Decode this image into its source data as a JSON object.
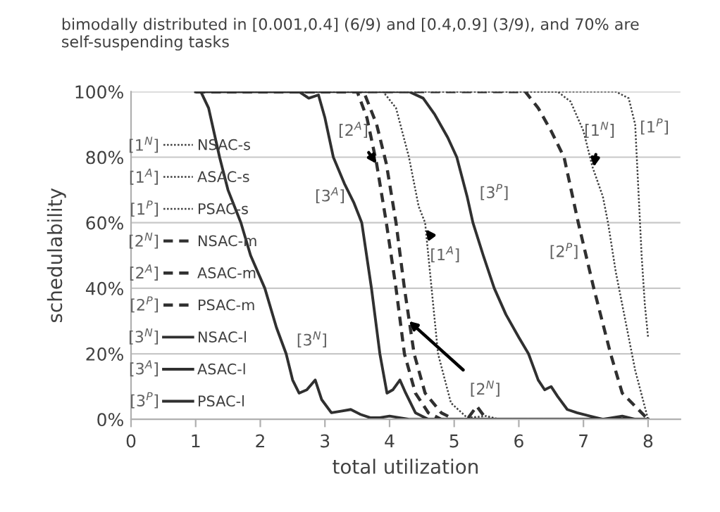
{
  "chart_data": {
    "type": "line",
    "title": "bimodally distributed in [0.001,0.4] (6/9) and [0.4,0.9] (3/9), and 70% are self-suspending tasks",
    "xlabel": "total utilization",
    "ylabel": "schedulability",
    "xlim": [
      0,
      8.5
    ],
    "xticks": [
      0,
      1,
      2,
      3,
      4,
      5,
      6,
      7,
      8
    ],
    "ylim": [
      0,
      100
    ],
    "yticks": [
      {
        "value": 0,
        "label": "0%"
      },
      {
        "value": 20,
        "label": "20%"
      },
      {
        "value": 40,
        "label": "40%"
      },
      {
        "value": 60,
        "label": "60%"
      },
      {
        "value": 80,
        "label": "80%"
      },
      {
        "value": 100,
        "label": "100%"
      }
    ],
    "grid": "y",
    "legend": "left",
    "series": [
      {
        "name": "NSAC-s",
        "color": "#404040",
        "line_style": "dotted",
        "x": [
          1,
          6.6,
          6.8,
          7.0,
          7.14,
          7.3,
          7.38,
          7.5,
          7.65,
          7.8,
          8
        ],
        "values": [
          100,
          100,
          97,
          88,
          77,
          68,
          60,
          45,
          30,
          15,
          0
        ]
      },
      {
        "name": "ASAC-s",
        "color": "#404040",
        "line_style": "dotted",
        "x": [
          1,
          3.9,
          4.1,
          4.3,
          4.45,
          4.55,
          4.65,
          4.75,
          4.95,
          5.2,
          5.5,
          5.7,
          8
        ],
        "values": [
          100,
          100,
          95,
          80,
          65,
          60,
          40,
          20,
          5,
          0.5,
          1,
          0,
          0
        ]
      },
      {
        "name": "PSAC-s",
        "color": "#404040",
        "line_style": "dotted",
        "x": [
          1,
          7.5,
          7.7,
          7.8,
          7.85,
          7.9,
          7.95,
          8
        ],
        "values": [
          100,
          100,
          98,
          90,
          70,
          50,
          35,
          25
        ]
      },
      {
        "name": "NSAC-m",
        "color": "#303030",
        "line_style": "dashed",
        "x": [
          1,
          3.6,
          3.8,
          3.95,
          4.1,
          4.23,
          4.38,
          4.55,
          4.8,
          5.0,
          5.2,
          5.35,
          5.5,
          8
        ],
        "values": [
          100,
          100,
          90,
          78,
          60,
          40,
          20,
          8,
          2,
          0,
          0,
          4,
          0,
          0
        ]
      },
      {
        "name": "ASAC-m",
        "color": "#303030",
        "line_style": "dashed",
        "x": [
          1,
          3.5,
          3.65,
          3.8,
          3.95,
          4.1,
          4.23,
          4.4,
          4.6,
          4.8,
          8
        ],
        "values": [
          100,
          100,
          92,
          78,
          60,
          40,
          20,
          8,
          2,
          0,
          0
        ]
      },
      {
        "name": "PSAC-m",
        "color": "#303030",
        "line_style": "dashed",
        "x": [
          1,
          6.1,
          6.3,
          6.5,
          6.7,
          6.92,
          7.16,
          7.42,
          7.6,
          7.8,
          8
        ],
        "values": [
          100,
          100,
          95,
          88,
          80,
          60,
          40,
          20,
          8,
          4,
          0
        ]
      },
      {
        "name": "NSAC-l",
        "color": "#303030",
        "line_style": "solid",
        "x": [
          1,
          1.08,
          1.2,
          1.37,
          1.5,
          1.7,
          1.85,
          2.07,
          2.25,
          2.4,
          2.5,
          2.6,
          2.72,
          2.85,
          2.95,
          3.1,
          3.25,
          3.4,
          3.55,
          3.7,
          3.85,
          4.0,
          4.15,
          4.3,
          8
        ],
        "values": [
          100,
          100,
          95,
          80,
          70,
          60,
          50,
          40,
          28,
          20,
          12,
          8,
          9,
          12,
          6,
          2,
          2.5,
          3,
          1.5,
          0.5,
          0.5,
          1,
          0.5,
          0,
          0
        ]
      },
      {
        "name": "ASAC-l",
        "color": "#303030",
        "line_style": "solid",
        "x": [
          1,
          2.6,
          2.75,
          2.9,
          3.0,
          3.13,
          3.3,
          3.45,
          3.57,
          3.72,
          3.85,
          3.96,
          4.05,
          4.16,
          4.25,
          4.4,
          4.6,
          8
        ],
        "values": [
          100,
          100,
          98,
          99,
          92,
          80,
          72,
          66,
          60,
          40,
          20,
          8,
          9,
          12,
          8,
          2,
          0,
          0
        ]
      },
      {
        "name": "PSAC-l",
        "color": "#303030",
        "line_style": "solid",
        "x": [
          1,
          4.3,
          4.52,
          4.7,
          4.9,
          5.04,
          5.2,
          5.29,
          5.45,
          5.62,
          5.8,
          6.0,
          6.15,
          6.3,
          6.4,
          6.5,
          6.6,
          6.75,
          6.9,
          7.1,
          7.3,
          7.6,
          7.8,
          8
        ],
        "values": [
          100,
          100,
          98,
          93,
          86,
          80,
          68,
          60,
          50,
          40,
          32,
          25,
          20,
          12,
          9,
          10,
          7,
          3,
          2,
          1,
          0,
          1,
          0,
          0
        ]
      }
    ],
    "annotations": [
      "[1$^{N}$]",
      "[1$^{A}$]",
      "[1$^{P}$]",
      "[2$^{N}$]",
      "[2$^{A}$]",
      "[2$^{P}$]",
      "[3$^{N}$]",
      "[3$^{A}$]",
      "[3$^{P}$]",
      {
        "text": "[1$^{N}$]",
        "x": 7.16,
        "y": 77
      },
      {
        "text": "[1$^{P}$]",
        "x": 7.8,
        "y": 90
      },
      {
        "text": "[2$^{A}$]",
        "x": 3.8,
        "y": 78
      },
      {
        "text": "[3$^{A}$]",
        "x": 3.45,
        "y": 66
      },
      {
        "text": "[3$^{P}$]",
        "x": 5.2,
        "y": 68
      },
      {
        "text": "[1$^{A}$]",
        "x": 4.56,
        "y": 58
      },
      {
        "text": "[2$^{P}$]",
        "x": 7.05,
        "y": 50
      },
      {
        "text": "[2$^{N}$]",
        "x": 4.3,
        "y": 30
      },
      {
        "text": "[3$^{N}$]",
        "x": 2.4,
        "y": 20
      }
    ]
  }
}
